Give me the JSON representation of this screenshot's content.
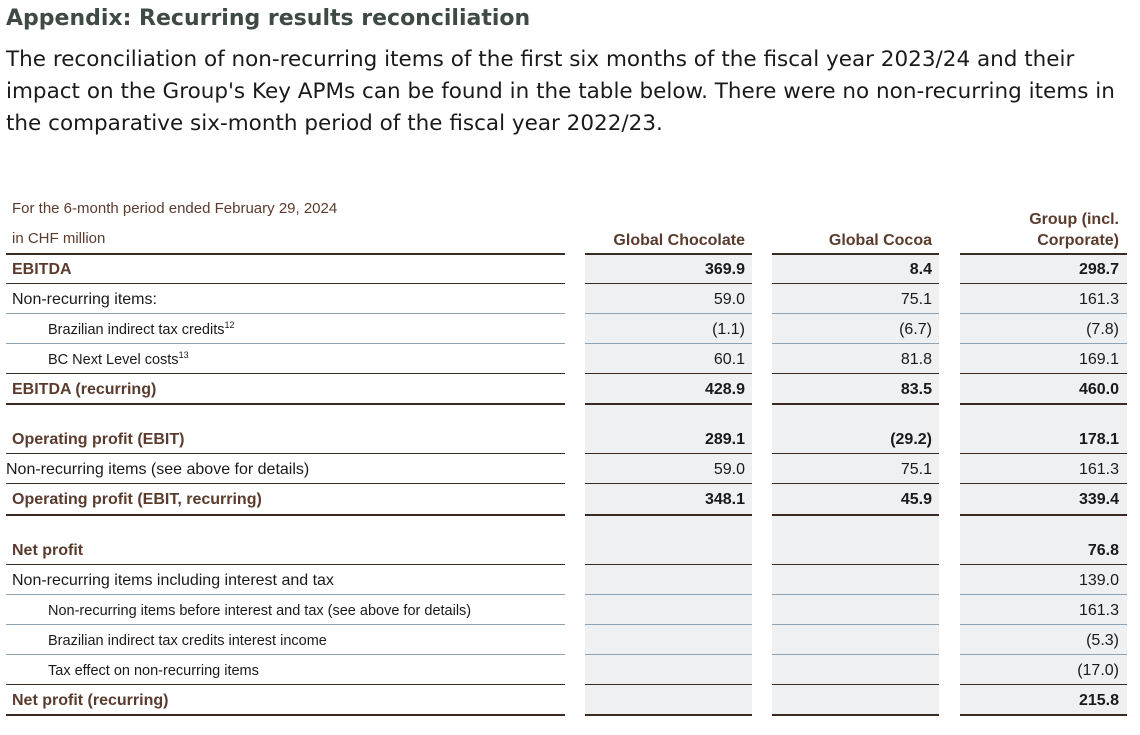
{
  "heading": "Appendix: Recurring results reconciliation",
  "intro": "The reconciliation of non-recurring items of the first six months of the fiscal year 2023/24 and their impact on the Group's Key APMs can be found in the table below. There were no non-recurring items in the comparative six-month period of the fiscal year 2022/23.",
  "table": {
    "period": "For the 6-month period ended February 29, 2024",
    "unit": "in CHF million",
    "columns": [
      "Global Chocolate",
      "Global Cocoa",
      "Group (incl.",
      "Corporate)"
    ],
    "rows": [
      {
        "label": "EBITDA",
        "sup": "",
        "c1": "369.9",
        "c2": "8.4",
        "c3": "298.7"
      },
      {
        "label": "Non-recurring items:",
        "sup": "",
        "c1": "59.0",
        "c2": "75.1",
        "c3": "161.3"
      },
      {
        "label": "Brazilian indirect tax credits",
        "sup": "12",
        "c1": "(1.1)",
        "c2": "(6.7)",
        "c3": "(7.8)"
      },
      {
        "label": "BC Next Level costs",
        "sup": "13",
        "c1": "60.1",
        "c2": "81.8",
        "c3": "169.1"
      },
      {
        "label": "EBITDA (recurring)",
        "sup": "",
        "c1": "428.9",
        "c2": "83.5",
        "c3": "460.0"
      },
      {
        "label": "Operating profit (EBIT)",
        "sup": "",
        "c1": "289.1",
        "c2": "(29.2)",
        "c3": "178.1"
      },
      {
        "label": "Non-recurring items (see above for details)",
        "sup": "",
        "c1": "59.0",
        "c2": "75.1",
        "c3": "161.3"
      },
      {
        "label": "Operating profit (EBIT, recurring)",
        "sup": "",
        "c1": "348.1",
        "c2": "45.9",
        "c3": "339.4"
      },
      {
        "label": "Net profit",
        "sup": "",
        "c1": "",
        "c2": "",
        "c3": "76.8"
      },
      {
        "label": "Non-recurring items including interest and tax",
        "sup": "",
        "c1": "",
        "c2": "",
        "c3": "139.0"
      },
      {
        "label": "Non-recurring items before interest and tax (see above for details)",
        "sup": "",
        "c1": "",
        "c2": "",
        "c3": "161.3"
      },
      {
        "label": "Brazilian indirect tax credits interest income",
        "sup": "",
        "c1": "",
        "c2": "",
        "c3": "(5.3)"
      },
      {
        "label": "Tax effect on non-recurring items",
        "sup": "",
        "c1": "",
        "c2": "",
        "c3": "(17.0)"
      },
      {
        "label": "Net profit (recurring)",
        "sup": "",
        "c1": "",
        "c2": "",
        "c3": "215.8"
      }
    ]
  }
}
